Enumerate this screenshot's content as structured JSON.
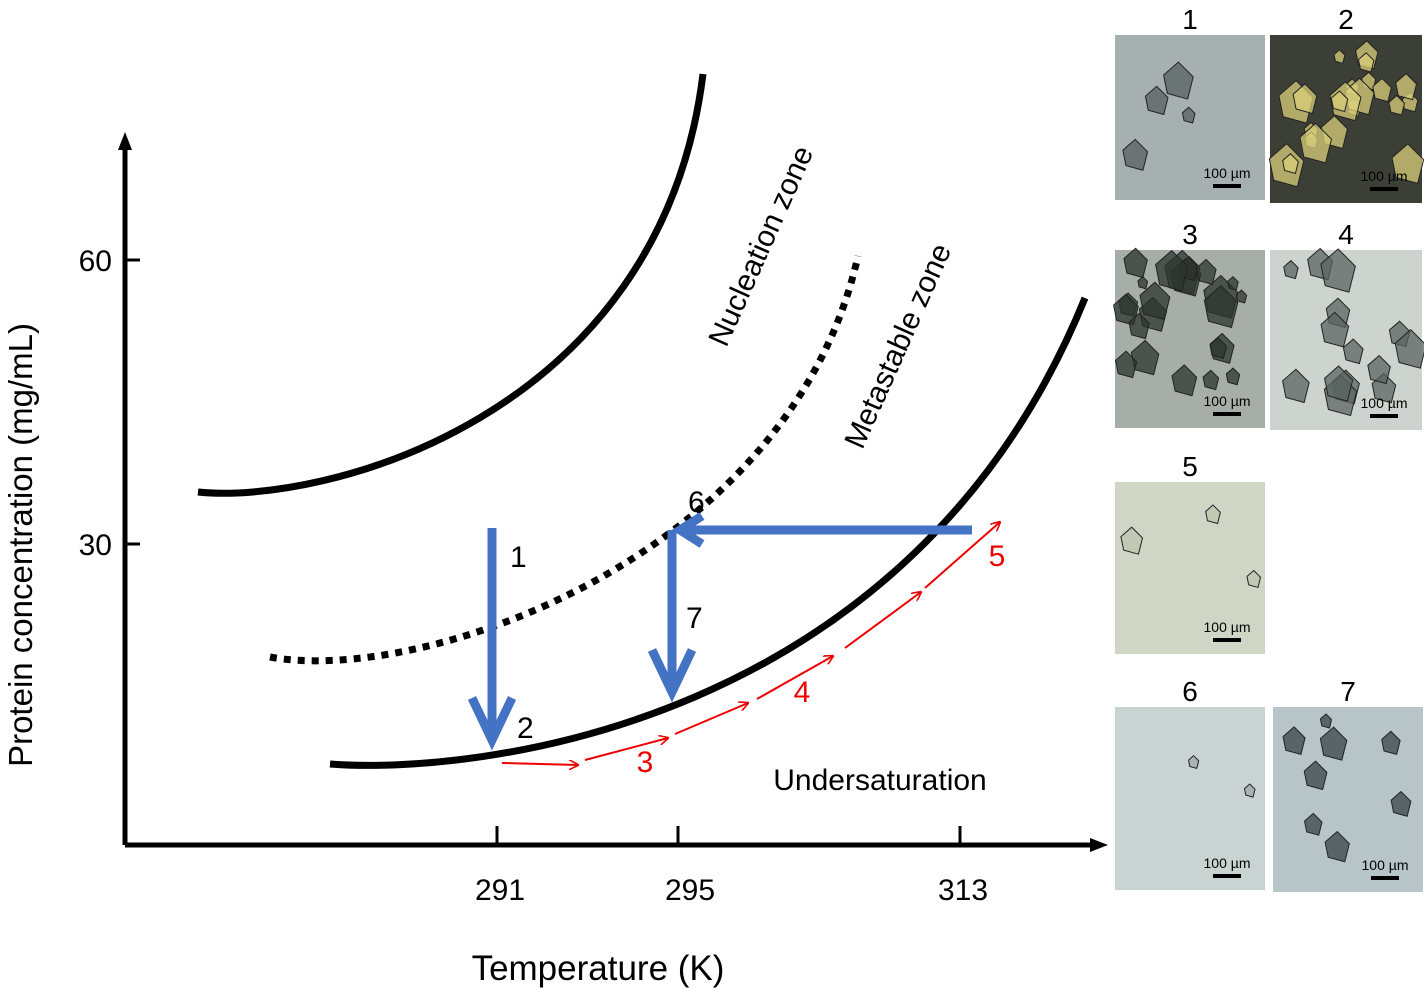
{
  "axes": {
    "x_label": "Temperature (K)",
    "y_label": "Protein concentration (mg/mL)",
    "x_ticks": [
      "291",
      "295",
      "313"
    ],
    "y_ticks": [
      "60",
      "30"
    ]
  },
  "zones": [
    "Nucleation zone",
    "Metastable zone",
    "Undersaturation"
  ],
  "steps": {
    "blue": [
      "1",
      "6",
      "7",
      "2"
    ],
    "red": [
      "3",
      "4",
      "5"
    ]
  },
  "micrographs": [
    {
      "label": "1",
      "scale": "100 µm"
    },
    {
      "label": "2",
      "scale": "100 µm"
    },
    {
      "label": "3",
      "scale": "100 µm"
    },
    {
      "label": "4",
      "scale": "100 µm"
    },
    {
      "label": "5",
      "scale": "100 µm"
    },
    {
      "label": "6",
      "scale": "100 µm"
    },
    {
      "label": "7",
      "scale": "100 µm"
    }
  ]
}
